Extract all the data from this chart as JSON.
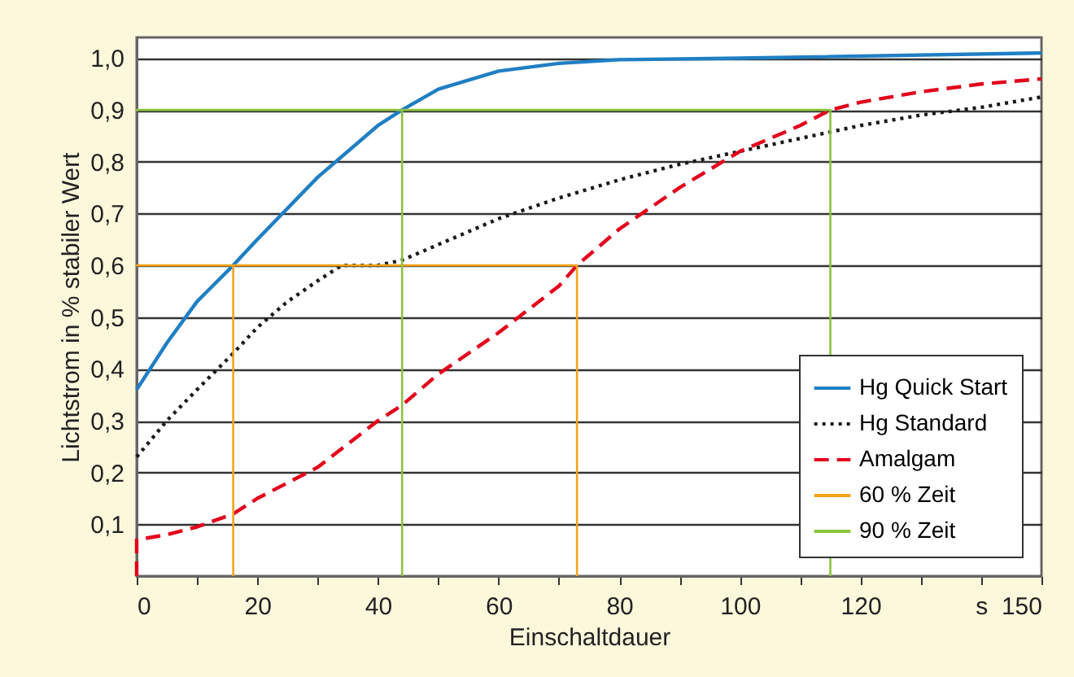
{
  "chart_data": {
    "type": "line",
    "xlabel": "Einschaltdauer",
    "ylabel": "Lichtstrom in % stabiler Wert",
    "xlim": [
      0,
      150
    ],
    "ylim": [
      0,
      1.04
    ],
    "xticks": [
      0,
      {
        "value": 10,
        "label": null
      },
      20,
      {
        "value": 30,
        "label": null
      },
      40,
      {
        "value": 50,
        "label": null
      },
      60,
      {
        "value": 70,
        "label": null
      },
      80,
      {
        "value": 90,
        "label": null
      },
      100,
      {
        "value": 110,
        "label": null
      },
      120,
      {
        "value": 130,
        "label": null
      },
      {
        "value": 140,
        "label": "s"
      },
      150
    ],
    "yticks": [
      {
        "value": 0.1,
        "label": "0,1"
      },
      {
        "value": 0.2,
        "label": "0,2"
      },
      {
        "value": 0.3,
        "label": "0,3"
      },
      {
        "value": 0.4,
        "label": "0,4"
      },
      {
        "value": 0.5,
        "label": "0,5"
      },
      {
        "value": 0.6,
        "label": "0,6"
      },
      {
        "value": 0.7,
        "label": "0,7"
      },
      {
        "value": 0.8,
        "label": "0,8"
      },
      {
        "value": 0.9,
        "label": "0,9"
      },
      {
        "value": 1.0,
        "label": "1,0"
      }
    ],
    "grid": "y",
    "legend": "bottom right",
    "marker": "none",
    "series": [
      {
        "name": "Hg Quick Start",
        "color": "#1f7fc4",
        "line_style": "solid",
        "x": [
          0,
          5,
          10,
          16,
          20,
          30,
          40,
          44,
          50,
          60,
          70,
          80,
          100,
          150
        ],
        "values": [
          0.36,
          0.45,
          0.53,
          0.6,
          0.65,
          0.77,
          0.87,
          0.9,
          0.94,
          0.975,
          0.99,
          0.997,
          1.0,
          1.01
        ]
      },
      {
        "name": "Hg Standard",
        "color": "#1a1a1a",
        "line_style": "dotted",
        "x": [
          0,
          5,
          10,
          16,
          20,
          25,
          30,
          34,
          40,
          44,
          50,
          60,
          70,
          80,
          90,
          100,
          110,
          120,
          130,
          140,
          150
        ],
        "values": [
          0.23,
          0.3,
          0.36,
          0.43,
          0.48,
          0.53,
          0.57,
          0.6,
          0.6,
          0.61,
          0.64,
          0.69,
          0.73,
          0.765,
          0.795,
          0.82,
          0.845,
          0.87,
          0.89,
          0.905,
          0.925
        ]
      },
      {
        "name": "Amalgam",
        "color": "#e3001b",
        "line_style": "dashed",
        "x": [
          0,
          0,
          5,
          10,
          16,
          20,
          30,
          40,
          44,
          50,
          60,
          70,
          73,
          80,
          90,
          100,
          110,
          115,
          120,
          130,
          140,
          150
        ],
        "values": [
          0,
          0.07,
          0.08,
          0.095,
          0.12,
          0.15,
          0.21,
          0.3,
          0.33,
          0.39,
          0.47,
          0.56,
          0.6,
          0.67,
          0.75,
          0.82,
          0.87,
          0.9,
          0.915,
          0.935,
          0.95,
          0.96
        ]
      },
      {
        "name": "60 % Zeit",
        "color": "#f5a31a",
        "line_style": "solid",
        "x": [
          16,
          16,
          0,
          73,
          73
        ],
        "values": [
          0,
          0.6,
          0.6,
          0.6,
          0
        ]
      },
      {
        "name": "90 % Zeit",
        "color": "#8dc33f",
        "line_style": "solid",
        "x": [
          44,
          44,
          0,
          115,
          115
        ],
        "values": [
          0,
          0.9,
          0.9,
          0.9,
          0
        ]
      }
    ]
  }
}
